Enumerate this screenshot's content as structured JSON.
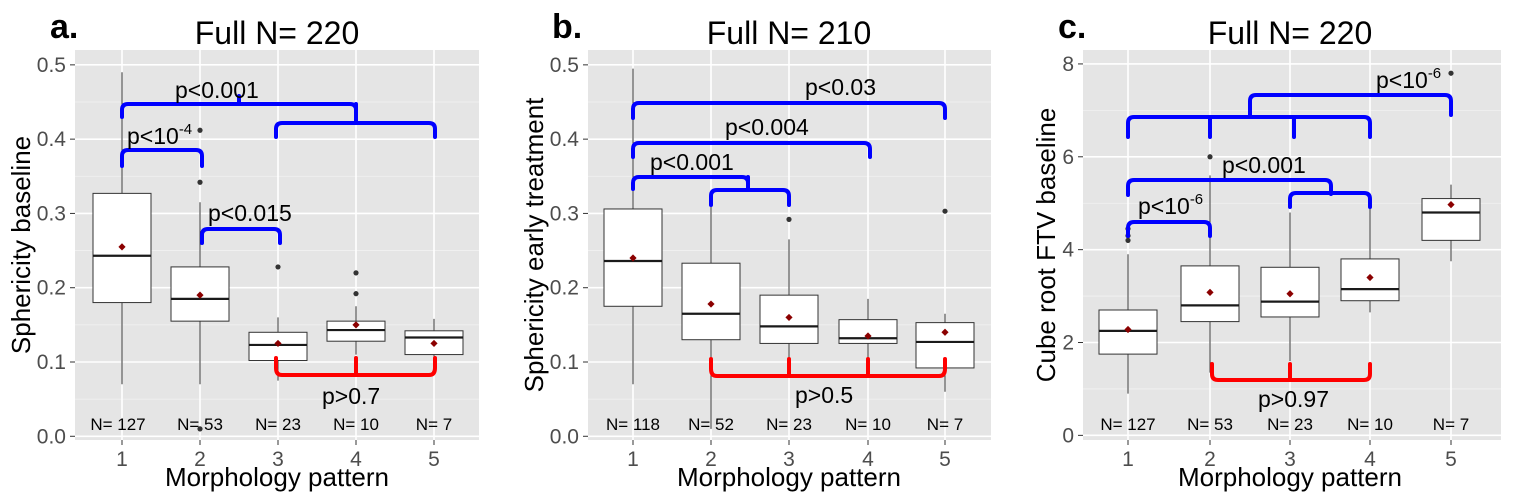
{
  "chart_data": [
    {
      "type": "box",
      "panel_label": "a.",
      "title": "Full N= 220",
      "xlabel": "Morphology pattern",
      "ylabel": "Sphericity baseline",
      "categories": [
        "1",
        "2",
        "3",
        "4",
        "5"
      ],
      "yticks": [
        "0.0",
        "0.1",
        "0.2",
        "0.3",
        "0.4",
        "0.5"
      ],
      "ylim": [
        -0.005,
        0.52
      ],
      "boxes": [
        {
          "n_label": "N= 127",
          "min": 0.07,
          "q1": 0.18,
          "median": 0.243,
          "q3": 0.327,
          "max": 0.49,
          "mean": 0.255,
          "outliers": []
        },
        {
          "n_label": "N= 53",
          "min": 0.07,
          "q1": 0.155,
          "median": 0.185,
          "q3": 0.228,
          "max": 0.315,
          "mean": 0.19,
          "outliers": [
            0.342,
            0.412,
            0.01
          ]
        },
        {
          "n_label": "N= 23",
          "min": 0.075,
          "q1": 0.102,
          "median": 0.123,
          "q3": 0.14,
          "max": 0.16,
          "mean": 0.125,
          "outliers": [
            0.228
          ]
        },
        {
          "n_label": "N= 10",
          "min": 0.11,
          "q1": 0.128,
          "median": 0.143,
          "q3": 0.155,
          "max": 0.175,
          "mean": 0.15,
          "outliers": [
            0.192,
            0.22
          ]
        },
        {
          "n_label": "N= 7",
          "min": 0.1,
          "q1": 0.11,
          "median": 0.133,
          "q3": 0.142,
          "max": 0.158,
          "mean": 0.125,
          "outliers": []
        }
      ],
      "comparisons": [
        {
          "text": "p<0.001",
          "color": "#0000ff"
        },
        {
          "text": "p<10",
          "sup": "-4",
          "color": "#0000ff"
        },
        {
          "text": "p<0.015",
          "color": "#0000ff"
        },
        {
          "text": "p>0.7",
          "color": "#ff0000"
        }
      ]
    },
    {
      "type": "box",
      "panel_label": "b.",
      "title": "Full N= 210",
      "xlabel": "Morphology pattern",
      "ylabel": "Sphericity early treatment",
      "categories": [
        "1",
        "2",
        "3",
        "4",
        "5"
      ],
      "yticks": [
        "0.0",
        "0.1",
        "0.2",
        "0.3",
        "0.4",
        "0.5"
      ],
      "ylim": [
        -0.005,
        0.52
      ],
      "boxes": [
        {
          "n_label": "N= 118",
          "min": 0.07,
          "q1": 0.175,
          "median": 0.236,
          "q3": 0.306,
          "max": 0.495,
          "mean": 0.24,
          "outliers": []
        },
        {
          "n_label": "N= 52",
          "min": 0.01,
          "q1": 0.13,
          "median": 0.165,
          "q3": 0.233,
          "max": 0.33,
          "mean": 0.178,
          "outliers": []
        },
        {
          "n_label": "N= 23",
          "min": 0.085,
          "q1": 0.125,
          "median": 0.148,
          "q3": 0.19,
          "max": 0.265,
          "mean": 0.16,
          "outliers": [
            0.292
          ]
        },
        {
          "n_label": "N= 10",
          "min": 0.1,
          "q1": 0.125,
          "median": 0.132,
          "q3": 0.157,
          "max": 0.185,
          "mean": 0.135,
          "outliers": []
        },
        {
          "n_label": "N= 7",
          "min": 0.06,
          "q1": 0.092,
          "median": 0.127,
          "q3": 0.153,
          "max": 0.165,
          "mean": 0.14,
          "outliers": [
            0.303
          ]
        }
      ],
      "comparisons": [
        {
          "text": "p<0.03",
          "color": "#0000ff"
        },
        {
          "text": "p<0.004",
          "color": "#0000ff"
        },
        {
          "text": "p<0.001",
          "color": "#0000ff"
        },
        {
          "text": "p>0.5",
          "color": "#ff0000"
        }
      ]
    },
    {
      "type": "box",
      "panel_label": "c.",
      "title": "Full N= 220",
      "xlabel": "Morphology pattern",
      "ylabel": "Cube root FTV baseline",
      "categories": [
        "1",
        "2",
        "3",
        "4",
        "5"
      ],
      "yticks": [
        "0",
        "2",
        "4",
        "6",
        "8"
      ],
      "ylim": [
        -0.1,
        8.3
      ],
      "boxes": [
        {
          "n_label": "N= 127",
          "min": 0.9,
          "q1": 1.75,
          "median": 2.25,
          "q3": 2.7,
          "max": 3.9,
          "mean": 2.28,
          "outliers": [
            4.2,
            4.3,
            4.45
          ]
        },
        {
          "n_label": "N= 53",
          "min": 1.35,
          "q1": 2.45,
          "median": 2.8,
          "q3": 3.65,
          "max": 5.6,
          "mean": 3.08,
          "outliers": [
            6.0
          ]
        },
        {
          "n_label": "N= 23",
          "min": 1.6,
          "q1": 2.55,
          "median": 2.88,
          "q3": 3.62,
          "max": 4.8,
          "mean": 3.05,
          "outliers": []
        },
        {
          "n_label": "N= 10",
          "min": 2.65,
          "q1": 2.9,
          "median": 3.15,
          "q3": 3.8,
          "max": 5.0,
          "mean": 3.4,
          "outliers": []
        },
        {
          "n_label": "N= 7",
          "min": 3.75,
          "q1": 4.2,
          "median": 4.8,
          "q3": 5.1,
          "max": 5.4,
          "mean": 4.97,
          "outliers": [
            7.8
          ]
        }
      ],
      "comparisons": [
        {
          "text": "p<10",
          "sup": "-6",
          "color": "#0000ff"
        },
        {
          "text": "p<0.001",
          "color": "#0000ff"
        },
        {
          "text": "p<10",
          "sup": "-6",
          "color": "#0000ff"
        },
        {
          "text": "p>0.97",
          "color": "#ff0000"
        }
      ]
    }
  ]
}
